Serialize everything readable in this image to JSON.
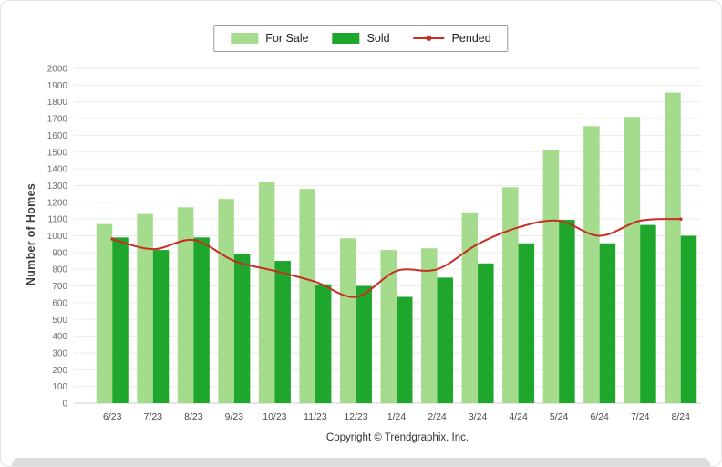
{
  "footer": {
    "copyright": "Copyright © Trendgraphix, Inc."
  },
  "colors": {
    "for_sale": "#a5db8c",
    "sold": "#1fa62c",
    "pended": "#c82d23",
    "gridline": "#ebebeb",
    "zero_line": "#cfcfcf"
  },
  "chart_data": {
    "type": "bar",
    "title": "",
    "xlabel": "",
    "ylabel": "Number of Homes",
    "ylim": [
      0,
      2000
    ],
    "ytick_step": 100,
    "grid": true,
    "legend_position": "top",
    "categories": [
      "6/23",
      "7/23",
      "8/23",
      "9/23",
      "10/23",
      "11/23",
      "12/23",
      "1/24",
      "2/24",
      "3/24",
      "4/24",
      "5/24",
      "6/24",
      "7/24",
      "8/24"
    ],
    "series": [
      {
        "name": "For Sale",
        "type": "bar",
        "color": "#a5db8c",
        "values": [
          1070,
          1130,
          1170,
          1220,
          1320,
          1280,
          985,
          915,
          925,
          1140,
          1290,
          1510,
          1655,
          1710,
          1855
        ]
      },
      {
        "name": "Sold",
        "type": "bar",
        "color": "#1fa62c",
        "values": [
          990,
          915,
          990,
          890,
          850,
          710,
          700,
          635,
          750,
          835,
          955,
          1095,
          955,
          1065,
          1000
        ]
      },
      {
        "name": "Pended",
        "type": "line",
        "color": "#c82d23",
        "values": [
          980,
          920,
          975,
          850,
          790,
          725,
          635,
          790,
          800,
          950,
          1050,
          1090,
          1000,
          1090,
          1100
        ]
      }
    ]
  }
}
